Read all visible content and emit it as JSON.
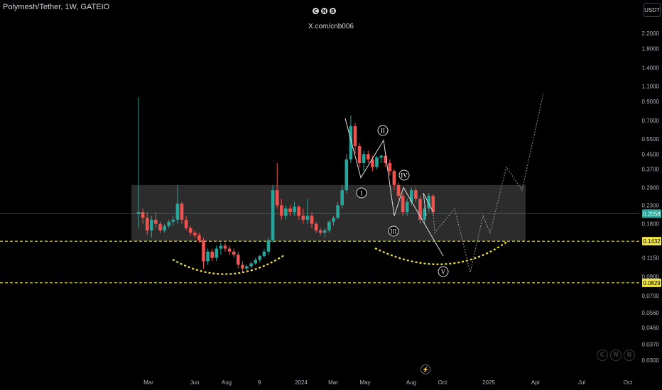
{
  "header": {
    "title": "Polymesh/Tether, 1W, GATEIO",
    "logo_letters": [
      "C",
      "N",
      "B"
    ],
    "handle": "X.com/cnb006"
  },
  "toolbar": {
    "currency_button": "USDT",
    "bolt_icon": "lightning-icon"
  },
  "watermark": {
    "letters": [
      "C",
      "N",
      "B"
    ]
  },
  "colors": {
    "up": "#26a69a",
    "down": "#ef5350",
    "zone": "#3b3b3b",
    "support": "#f0e442",
    "current": "#26a69a",
    "projection": "#9598a1"
  },
  "chart_data": {
    "type": "candlestick",
    "title": "Polymesh/Tether, 1W, GATEIO",
    "y_scale": "log",
    "ylim": [
      0.026,
      3.2
    ],
    "x_ticks": [
      "Mar",
      "Jun",
      "Aug",
      "9",
      "2024",
      "Mar",
      "May",
      "Aug",
      "Oct",
      "2025",
      "Apr",
      "Jul",
      "Oct"
    ],
    "y_ticks": [
      "2.2000",
      "1.8000",
      "1.4000",
      "1.1000",
      "0.9000",
      "0.7000",
      "0.5500",
      "0.4500",
      "0.3700",
      "0.2900",
      "0.2300",
      "0.1800",
      "0.1150",
      "0.0900",
      "0.0700",
      "0.0560",
      "0.0460",
      "0.0370",
      "0.0300"
    ],
    "current_price": "0.2058",
    "support_levels": [
      "0.1432",
      "0.0829"
    ],
    "range_zone": {
      "low": 0.1432,
      "high": 0.3
    },
    "wave_labels": [
      "I",
      "II",
      "III",
      "IV",
      "V"
    ],
    "candles": [
      [
        0.205,
        0.95,
        0.17,
        0.21
      ],
      [
        0.21,
        0.22,
        0.18,
        0.195
      ],
      [
        0.195,
        0.21,
        0.155,
        0.165
      ],
      [
        0.165,
        0.2,
        0.15,
        0.19
      ],
      [
        0.19,
        0.21,
        0.17,
        0.18
      ],
      [
        0.18,
        0.185,
        0.16,
        0.165
      ],
      [
        0.165,
        0.18,
        0.16,
        0.175
      ],
      [
        0.175,
        0.19,
        0.17,
        0.185
      ],
      [
        0.185,
        0.2,
        0.175,
        0.19
      ],
      [
        0.19,
        0.3,
        0.18,
        0.235
      ],
      [
        0.235,
        0.24,
        0.18,
        0.19
      ],
      [
        0.19,
        0.2,
        0.165,
        0.17
      ],
      [
        0.17,
        0.175,
        0.155,
        0.16
      ],
      [
        0.16,
        0.165,
        0.15,
        0.155
      ],
      [
        0.155,
        0.16,
        0.14,
        0.145
      ],
      [
        0.145,
        0.15,
        0.1,
        0.11
      ],
      [
        0.11,
        0.13,
        0.105,
        0.125
      ],
      [
        0.125,
        0.13,
        0.11,
        0.115
      ],
      [
        0.115,
        0.135,
        0.11,
        0.13
      ],
      [
        0.13,
        0.14,
        0.12,
        0.135
      ],
      [
        0.135,
        0.14,
        0.125,
        0.13
      ],
      [
        0.13,
        0.135,
        0.12,
        0.125
      ],
      [
        0.125,
        0.13,
        0.115,
        0.12
      ],
      [
        0.12,
        0.125,
        0.1,
        0.105
      ],
      [
        0.105,
        0.11,
        0.095,
        0.1
      ],
      [
        0.1,
        0.105,
        0.095,
        0.103
      ],
      [
        0.103,
        0.11,
        0.1,
        0.107
      ],
      [
        0.107,
        0.115,
        0.105,
        0.112
      ],
      [
        0.112,
        0.12,
        0.108,
        0.118
      ],
      [
        0.118,
        0.13,
        0.115,
        0.125
      ],
      [
        0.125,
        0.15,
        0.12,
        0.145
      ],
      [
        0.145,
        0.3,
        0.14,
        0.28
      ],
      [
        0.28,
        0.4,
        0.22,
        0.23
      ],
      [
        0.23,
        0.25,
        0.19,
        0.2
      ],
      [
        0.2,
        0.23,
        0.19,
        0.22
      ],
      [
        0.22,
        0.23,
        0.2,
        0.21
      ],
      [
        0.21,
        0.24,
        0.2,
        0.225
      ],
      [
        0.225,
        0.23,
        0.19,
        0.2
      ],
      [
        0.2,
        0.22,
        0.18,
        0.19
      ],
      [
        0.19,
        0.25,
        0.18,
        0.2
      ],
      [
        0.2,
        0.21,
        0.17,
        0.18
      ],
      [
        0.18,
        0.185,
        0.16,
        0.165
      ],
      [
        0.165,
        0.17,
        0.155,
        0.16
      ],
      [
        0.16,
        0.17,
        0.15,
        0.165
      ],
      [
        0.165,
        0.19,
        0.16,
        0.185
      ],
      [
        0.185,
        0.2,
        0.175,
        0.195
      ],
      [
        0.195,
        0.24,
        0.19,
        0.23
      ],
      [
        0.23,
        0.3,
        0.22,
        0.28
      ],
      [
        0.28,
        0.45,
        0.27,
        0.42
      ],
      [
        0.42,
        0.75,
        0.4,
        0.65
      ],
      [
        0.65,
        0.68,
        0.45,
        0.5
      ],
      [
        0.5,
        0.52,
        0.38,
        0.4
      ],
      [
        0.4,
        0.47,
        0.36,
        0.45
      ],
      [
        0.45,
        0.47,
        0.4,
        0.42
      ],
      [
        0.42,
        0.44,
        0.36,
        0.38
      ],
      [
        0.38,
        0.44,
        0.37,
        0.43
      ],
      [
        0.43,
        0.45,
        0.4,
        0.44
      ],
      [
        0.44,
        0.46,
        0.38,
        0.4
      ],
      [
        0.4,
        0.42,
        0.34,
        0.36
      ],
      [
        0.36,
        0.37,
        0.28,
        0.3
      ],
      [
        0.3,
        0.31,
        0.25,
        0.26
      ],
      [
        0.26,
        0.27,
        0.2,
        0.21
      ],
      [
        0.21,
        0.25,
        0.2,
        0.24
      ],
      [
        0.24,
        0.29,
        0.23,
        0.28
      ],
      [
        0.28,
        0.29,
        0.24,
        0.25
      ],
      [
        0.25,
        0.26,
        0.18,
        0.19
      ],
      [
        0.19,
        0.23,
        0.18,
        0.22
      ],
      [
        0.22,
        0.27,
        0.21,
        0.26
      ],
      [
        0.26,
        0.265,
        0.2,
        0.21
      ]
    ],
    "projection_path": [
      [
        0.21,
        "now"
      ],
      [
        0.16,
        "+3w"
      ],
      [
        0.22,
        "+6w"
      ],
      [
        0.1,
        "+9w"
      ],
      [
        0.2,
        "+12w"
      ],
      [
        0.15,
        "+14w"
      ],
      [
        0.38,
        "+19w"
      ],
      [
        0.28,
        "+22w"
      ],
      [
        1.0,
        "+26w"
      ]
    ]
  }
}
